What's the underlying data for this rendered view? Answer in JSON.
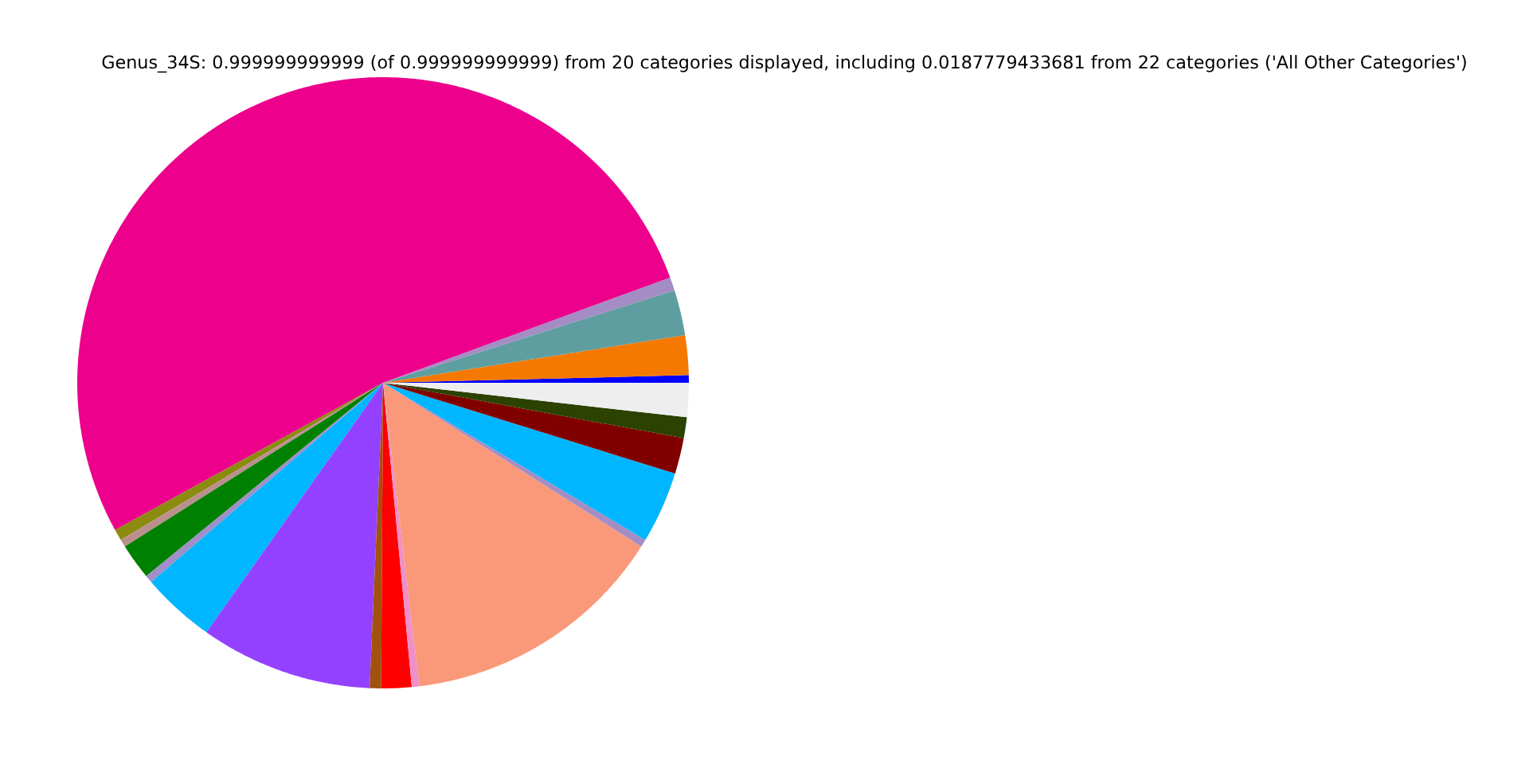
{
  "chart_data": {
    "type": "pie",
    "title": "Genus_34S: 0.999999999999 (of 0.999999999999) from 20 categories displayed, including 0.0187779433681 from 22 categories ('All Other Categories')",
    "categories": [
      null,
      null,
      null,
      null,
      null,
      null,
      null,
      null,
      null,
      null,
      null,
      null,
      null,
      null,
      null,
      null,
      null,
      null,
      null,
      null
    ],
    "values": [
      0.4,
      2.1,
      2.4,
      0.7,
      52.4,
      0.6,
      0.4,
      1.9,
      0.4,
      3.9,
      9.1,
      0.6,
      1.6,
      0.4,
      14.1,
      0.4,
      3.8,
      1.9,
      1.1,
      1.8
    ],
    "colors": [
      "#0000ff",
      "#f57900",
      "#5f9ea0",
      "#a48dc4",
      "#ec008c",
      "#8b8b0f",
      "#bc8f8f",
      "#008000",
      "#a08fc8",
      "#00b6ff",
      "#9341ff",
      "#a0520e",
      "#ff0000",
      "#f08fc8",
      "#f99979",
      "#a48dc4",
      "#00b6ff",
      "#800000",
      "#2b4200",
      "#eeeeee"
    ]
  }
}
